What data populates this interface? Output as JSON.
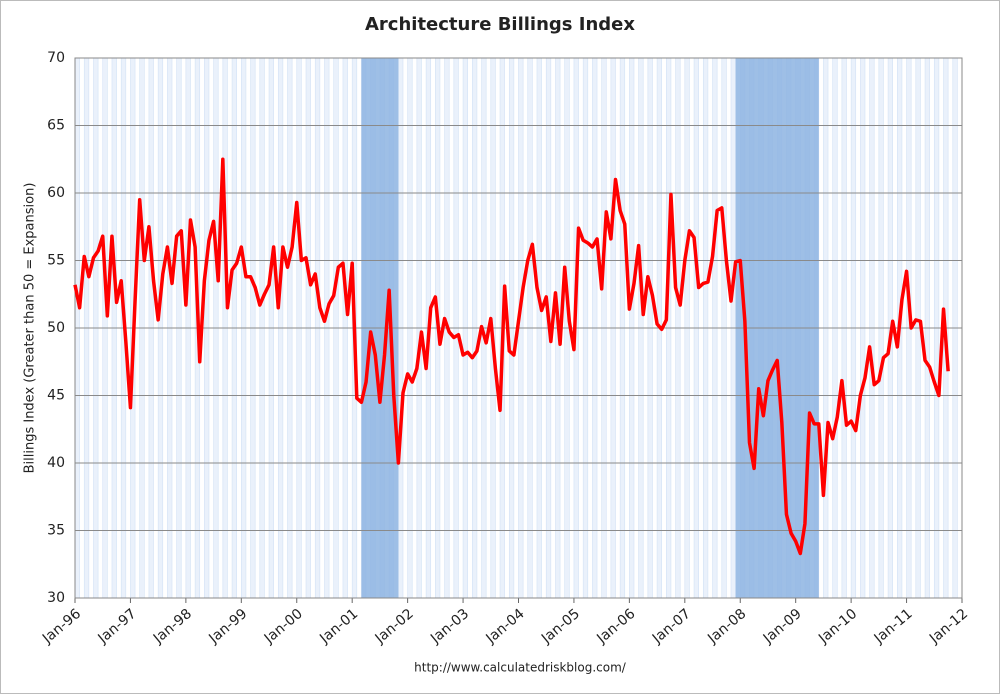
{
  "chart_data": {
    "type": "line",
    "title": "Architecture Billings Index",
    "y_label": "Billings Index (Greater than 50 = Expansion)",
    "source": "http://www.calculatedriskblog.com/",
    "x": [
      "1996-01",
      "1996-02",
      "1996-03",
      "1996-04",
      "1996-05",
      "1996-06",
      "1996-07",
      "1996-08",
      "1996-09",
      "1996-10",
      "1996-11",
      "1996-12",
      "1997-01",
      "1997-02",
      "1997-03",
      "1997-04",
      "1997-05",
      "1997-06",
      "1997-07",
      "1997-08",
      "1997-09",
      "1997-10",
      "1997-11",
      "1997-12",
      "1998-01",
      "1998-02",
      "1998-03",
      "1998-04",
      "1998-05",
      "1998-06",
      "1998-07",
      "1998-08",
      "1998-09",
      "1998-10",
      "1998-11",
      "1998-12",
      "1999-01",
      "1999-02",
      "1999-03",
      "1999-04",
      "1999-05",
      "1999-06",
      "1999-07",
      "1999-08",
      "1999-09",
      "1999-10",
      "1999-11",
      "1999-12",
      "2000-01",
      "2000-02",
      "2000-03",
      "2000-04",
      "2000-05",
      "2000-06",
      "2000-07",
      "2000-08",
      "2000-09",
      "2000-10",
      "2000-11",
      "2000-12",
      "2001-01",
      "2001-02",
      "2001-03",
      "2001-04",
      "2001-05",
      "2001-06",
      "2001-07",
      "2001-08",
      "2001-09",
      "2001-10",
      "2001-11",
      "2001-12",
      "2002-01",
      "2002-02",
      "2002-03",
      "2002-04",
      "2002-05",
      "2002-06",
      "2002-07",
      "2002-08",
      "2002-09",
      "2002-10",
      "2002-11",
      "2002-12",
      "2003-01",
      "2003-02",
      "2003-03",
      "2003-04",
      "2003-05",
      "2003-06",
      "2003-07",
      "2003-08",
      "2003-09",
      "2003-10",
      "2003-11",
      "2003-12",
      "2004-01",
      "2004-02",
      "2004-03",
      "2004-04",
      "2004-05",
      "2004-06",
      "2004-07",
      "2004-08",
      "2004-09",
      "2004-10",
      "2004-11",
      "2004-12",
      "2005-01",
      "2005-02",
      "2005-03",
      "2005-04",
      "2005-05",
      "2005-06",
      "2005-07",
      "2005-08",
      "2005-09",
      "2005-10",
      "2005-11",
      "2005-12",
      "2006-01",
      "2006-02",
      "2006-03",
      "2006-04",
      "2006-05",
      "2006-06",
      "2006-07",
      "2006-08",
      "2006-09",
      "2006-10",
      "2006-11",
      "2006-12",
      "2007-01",
      "2007-02",
      "2007-03",
      "2007-04",
      "2007-05",
      "2007-06",
      "2007-07",
      "2007-08",
      "2007-09",
      "2007-10",
      "2007-11",
      "2007-12",
      "2008-01",
      "2008-02",
      "2008-03",
      "2008-04",
      "2008-05",
      "2008-06",
      "2008-07",
      "2008-08",
      "2008-09",
      "2008-10",
      "2008-11",
      "2008-12",
      "2009-01",
      "2009-02",
      "2009-03",
      "2009-04",
      "2009-05",
      "2009-06",
      "2009-07",
      "2009-08",
      "2009-09",
      "2009-10",
      "2009-11",
      "2009-12",
      "2010-01",
      "2010-02",
      "2010-03",
      "2010-04",
      "2010-05",
      "2010-06",
      "2010-07",
      "2010-08",
      "2010-09",
      "2010-10",
      "2010-11",
      "2010-12",
      "2011-01",
      "2011-02",
      "2011-03",
      "2011-04",
      "2011-05",
      "2011-06",
      "2011-07",
      "2011-08",
      "2011-09",
      "2011-10"
    ],
    "series": [
      {
        "name": "Architecture Billings Index",
        "color": "#ff0000",
        "values": [
          53.2,
          51.5,
          55.3,
          53.8,
          55.2,
          55.7,
          56.8,
          50.9,
          56.8,
          51.9,
          53.5,
          49,
          44.1,
          52,
          59.5,
          55,
          57.5,
          53.5,
          50.6,
          54,
          56,
          53.3,
          56.8,
          57.2,
          51.7,
          58,
          56,
          47.5,
          53.5,
          56.5,
          57.9,
          53.5,
          62.5,
          51.5,
          54.3,
          54.8,
          56,
          53.8,
          53.8,
          53,
          51.7,
          52.5,
          53.2,
          56,
          51.5,
          56,
          54.5,
          56,
          59.3,
          55,
          55.2,
          53.2,
          54,
          51.5,
          50.5,
          51.8,
          52.4,
          54.5,
          54.8,
          51,
          54.8,
          44.8,
          44.5,
          46,
          49.7,
          48,
          44.5,
          48,
          52.8,
          45,
          40,
          45.2,
          46.6,
          46,
          47,
          49.7,
          47,
          51.5,
          52.3,
          48.8,
          50.7,
          49.7,
          49.3,
          49.5,
          48,
          48.2,
          47.8,
          48.3,
          50.1,
          48.9,
          50.7,
          47,
          43.9,
          53.1,
          48.3,
          48,
          50.5,
          53,
          55,
          56.2,
          53,
          51.3,
          52.3,
          49,
          52.6,
          48.8,
          54.5,
          50.5,
          48.4,
          57.4,
          56.5,
          56.3,
          56,
          56.6,
          52.9,
          58.6,
          56.6,
          61,
          58.7,
          57.7,
          51.4,
          53.3,
          56.1,
          51,
          53.8,
          52.4,
          50.3,
          49.9,
          50.6,
          59.9,
          53,
          51.7,
          55,
          57.2,
          56.7,
          53,
          53.3,
          53.4,
          55.3,
          58.7,
          58.9,
          55,
          52,
          54.9,
          55,
          50.5,
          41.5,
          39.6,
          45.5,
          43.5,
          46.1,
          46.9,
          47.6,
          43,
          36.2,
          34.8,
          34.2,
          33.3,
          35.5,
          43.7,
          42.9,
          42.9,
          37.6,
          43,
          41.8,
          43.4,
          46.1,
          42.8,
          43.1,
          42.4,
          45,
          46.3,
          48.6,
          45.8,
          46.1,
          47.8,
          48.1,
          50.5,
          48.6,
          52.1,
          54.2,
          50,
          50.6,
          50.5,
          47.6,
          47.1,
          46,
          45,
          51.4,
          46.8
        ]
      }
    ],
    "xlim": [
      "1996-01",
      "2012-01"
    ],
    "xticks": [
      {
        "value": "1996-01",
        "label": "Jan-96"
      },
      {
        "value": "1997-01",
        "label": "Jan-97"
      },
      {
        "value": "1998-01",
        "label": "Jan-98"
      },
      {
        "value": "1999-01",
        "label": "Jan-99"
      },
      {
        "value": "2000-01",
        "label": "Jan-00"
      },
      {
        "value": "2001-01",
        "label": "Jan-01"
      },
      {
        "value": "2002-01",
        "label": "Jan-02"
      },
      {
        "value": "2003-01",
        "label": "Jan-03"
      },
      {
        "value": "2004-01",
        "label": "Jan-04"
      },
      {
        "value": "2005-01",
        "label": "Jan-05"
      },
      {
        "value": "2006-01",
        "label": "Jan-06"
      },
      {
        "value": "2007-01",
        "label": "Jan-07"
      },
      {
        "value": "2008-01",
        "label": "Jan-08"
      },
      {
        "value": "2009-01",
        "label": "Jan-09"
      },
      {
        "value": "2010-01",
        "label": "Jan-10"
      },
      {
        "value": "2011-01",
        "label": "Jan-11"
      },
      {
        "value": "2012-01",
        "label": "Jan-12"
      }
    ],
    "ylim": [
      30,
      70
    ],
    "yticks": [
      30,
      35,
      40,
      45,
      50,
      55,
      60,
      65,
      70
    ],
    "grid": true,
    "shaded_regions": [
      {
        "start": "2001-03",
        "end": "2001-11",
        "color": "#8db4e2"
      },
      {
        "start": "2007-12",
        "end": "2009-06",
        "color": "#8db4e2"
      }
    ]
  }
}
